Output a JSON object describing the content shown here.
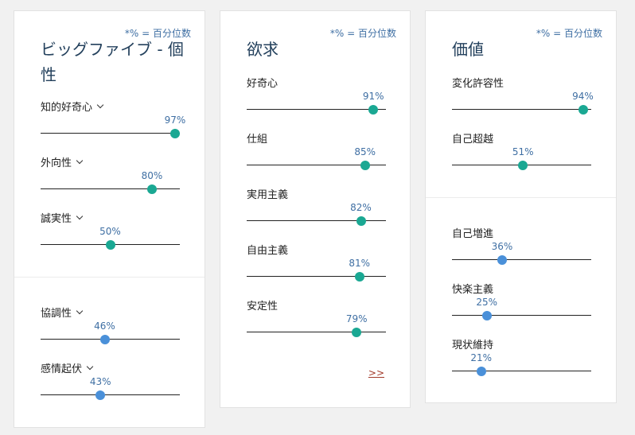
{
  "colors": {
    "accent_green": "#1aa893",
    "accent_blue": "#4a90d9",
    "link_red": "#a33a2a",
    "title_blue": "#23405c",
    "note_blue": "#3f6fa3"
  },
  "cards": [
    {
      "note": "*% = 百分位数",
      "title": "ビッグファイブ - 個性",
      "groups": [
        {
          "color": "green",
          "items": [
            {
              "label": "知的好奇心",
              "dropdown": true,
              "value": 97,
              "value_text": "97%"
            },
            {
              "label": "外向性",
              "dropdown": true,
              "value": 80,
              "value_text": "80%"
            },
            {
              "label": "誠実性",
              "dropdown": true,
              "value": 50,
              "value_text": "50%"
            }
          ]
        },
        {
          "color": "blue",
          "items": [
            {
              "label": "協調性",
              "dropdown": true,
              "value": 46,
              "value_text": "46%"
            },
            {
              "label": "感情起伏",
              "dropdown": true,
              "value": 43,
              "value_text": "43%"
            }
          ]
        }
      ]
    },
    {
      "note": "*% = 百分位数",
      "title": "欲求",
      "groups": [
        {
          "color": "green",
          "items": [
            {
              "label": "好奇心",
              "dropdown": false,
              "value": 91,
              "value_text": "91%"
            },
            {
              "label": "仕組",
              "dropdown": false,
              "value": 85,
              "value_text": "85%"
            },
            {
              "label": "実用主義",
              "dropdown": false,
              "value": 82,
              "value_text": "82%"
            },
            {
              "label": "自由主義",
              "dropdown": false,
              "value": 81,
              "value_text": "81%"
            },
            {
              "label": "安定性",
              "dropdown": false,
              "value": 79,
              "value_text": "79%"
            }
          ]
        }
      ],
      "more_link": ">>"
    },
    {
      "note": "*% = 百分位数",
      "title": "価値",
      "groups": [
        {
          "color": "green",
          "items": [
            {
              "label": "変化許容性",
              "dropdown": false,
              "value": 94,
              "value_text": "94%"
            },
            {
              "label": "自己超越",
              "dropdown": false,
              "value": 51,
              "value_text": "51%"
            }
          ]
        },
        {
          "color": "blue",
          "items": [
            {
              "label": "自己増進",
              "dropdown": false,
              "value": 36,
              "value_text": "36%"
            },
            {
              "label": "快楽主義",
              "dropdown": false,
              "value": 25,
              "value_text": "25%"
            },
            {
              "label": "現状維持",
              "dropdown": false,
              "value": 21,
              "value_text": "21%"
            }
          ]
        }
      ]
    }
  ]
}
